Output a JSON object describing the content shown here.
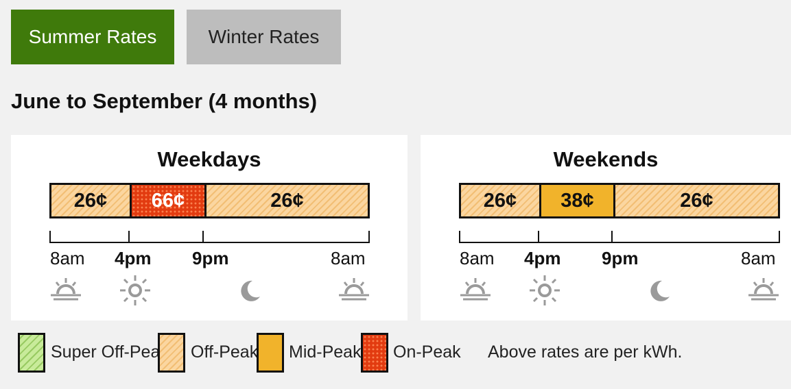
{
  "tabs": {
    "summer_label": "Summer Rates",
    "winter_label": "Winter Rates"
  },
  "heading": "June to September (4 months)",
  "weekdays": {
    "title": "Weekdays",
    "segments": [
      "26¢",
      "66¢",
      "26¢"
    ],
    "times": [
      "8am",
      "4pm",
      "9pm",
      "8am"
    ]
  },
  "weekends": {
    "title": "Weekends",
    "segments": [
      "26¢",
      "38¢",
      "26¢"
    ],
    "times": [
      "8am",
      "4pm",
      "9pm",
      "8am"
    ]
  },
  "legend": {
    "super_off_peak": "Super Off-Peak",
    "off_peak": "Off-Peak",
    "mid_peak": "Mid-Peak",
    "on_peak": "On-Peak",
    "note": "Above rates are per kWh."
  },
  "icons": [
    "sunrise-icon",
    "sun-icon",
    "moon-icon",
    "sunrise-icon"
  ],
  "colors": {
    "summer_tab": "#3f7a0b",
    "winter_tab": "#bdbdbd",
    "off_peak": "#fbd6a0",
    "mid_peak": "#f1b32b",
    "on_peak": "#e23b10",
    "super_off_peak": "#c8eb9a"
  }
}
